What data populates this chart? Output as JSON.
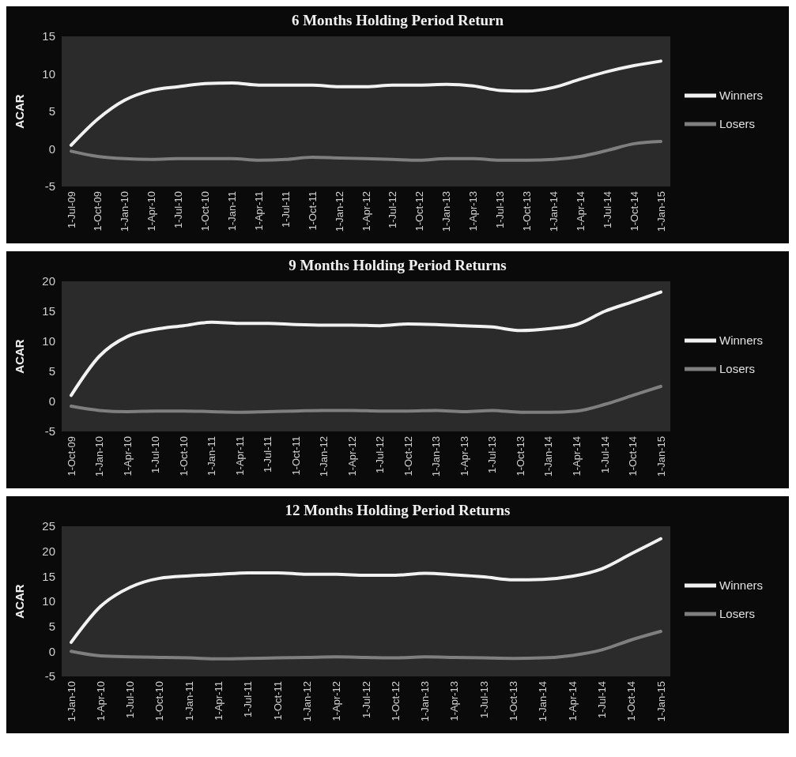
{
  "chart_data": [
    {
      "type": "line",
      "title": "6 Months Holding Period Return",
      "ylabel": "ACAR",
      "categories": [
        "1-Jul-09",
        "1-Oct-09",
        "1-Jan-10",
        "1-Apr-10",
        "1-Jul-10",
        "1-Oct-10",
        "1-Jan-11",
        "1-Apr-11",
        "1-Jul-11",
        "1-Oct-11",
        "1-Jan-12",
        "1-Apr-12",
        "1-Jul-12",
        "1-Oct-12",
        "1-Jan-13",
        "1-Apr-13",
        "1-Jul-13",
        "1-Oct-13",
        "1-Jan-14",
        "1-Apr-14",
        "1-Jul-14",
        "1-Oct-14",
        "1-Jan-15"
      ],
      "series": [
        {
          "name": "Winners",
          "color": "#f2f2f2",
          "values": [
            0.5,
            4,
            6.5,
            7.8,
            8.3,
            8.7,
            8.8,
            8.5,
            8.5,
            8.5,
            8.3,
            8.3,
            8.5,
            8.5,
            8.6,
            8.4,
            7.8,
            7.7,
            8.2,
            9.3,
            10.3,
            11.1,
            11.7
          ]
        },
        {
          "name": "Losers",
          "color": "#7f7f7f",
          "values": [
            -0.3,
            -1,
            -1.3,
            -1.4,
            -1.3,
            -1.3,
            -1.3,
            -1.5,
            -1.4,
            -1.1,
            -1.2,
            -1.3,
            -1.4,
            -1.5,
            -1.3,
            -1.3,
            -1.5,
            -1.5,
            -1.4,
            -1,
            -0.2,
            0.7,
            1
          ]
        }
      ],
      "ylim": [
        -5,
        15
      ],
      "yticks": [
        -5,
        0,
        5,
        10,
        15
      ],
      "legend": "right",
      "grid": false
    },
    {
      "type": "line",
      "title": "9 Months Holding Period Returns",
      "ylabel": "ACAR",
      "categories": [
        "1-Oct-09",
        "1-Jan-10",
        "1-Apr-10",
        "1-Jul-10",
        "1-Oct-10",
        "1-Jan-11",
        "1-Apr-11",
        "1-Jul-11",
        "1-Oct-11",
        "1-Jan-12",
        "1-Apr-12",
        "1-Jul-12",
        "1-Oct-12",
        "1-Jan-13",
        "1-Apr-13",
        "1-Jul-13",
        "1-Oct-13",
        "1-Jan-14",
        "1-Apr-14",
        "1-Jul-14",
        "1-Oct-14",
        "1-Jan-15"
      ],
      "series": [
        {
          "name": "Winners",
          "color": "#f2f2f2",
          "values": [
            1,
            7.5,
            10.8,
            12,
            12.6,
            13.2,
            13,
            13,
            12.8,
            12.7,
            12.7,
            12.6,
            12.9,
            12.8,
            12.6,
            12.4,
            11.8,
            12.1,
            12.8,
            15,
            16.6,
            18.2
          ]
        },
        {
          "name": "Losers",
          "color": "#7f7f7f",
          "values": [
            -0.8,
            -1.5,
            -1.7,
            -1.6,
            -1.6,
            -1.7,
            -1.8,
            -1.7,
            -1.6,
            -1.5,
            -1.5,
            -1.6,
            -1.6,
            -1.5,
            -1.7,
            -1.5,
            -1.8,
            -1.8,
            -1.6,
            -0.5,
            1,
            2.5
          ]
        }
      ],
      "ylim": [
        -5,
        20
      ],
      "yticks": [
        -5,
        0,
        5,
        10,
        15,
        20
      ],
      "legend": "right",
      "grid": false
    },
    {
      "type": "line",
      "title": "12 Months Holding Period Returns",
      "ylabel": "ACAR",
      "categories": [
        "1-Jan-10",
        "1-Apr-10",
        "1-Jul-10",
        "1-Oct-10",
        "1-Jan-11",
        "1-Apr-11",
        "1-Jul-11",
        "1-Oct-11",
        "1-Jan-12",
        "1-Apr-12",
        "1-Jul-12",
        "1-Oct-12",
        "1-Jan-13",
        "1-Apr-13",
        "1-Jul-13",
        "1-Oct-13",
        "1-Jan-14",
        "1-Apr-14",
        "1-Jul-14",
        "1-Oct-14",
        "1-Jan-15"
      ],
      "series": [
        {
          "name": "Winners",
          "color": "#f2f2f2",
          "values": [
            1.8,
            9,
            12.8,
            14.6,
            15.1,
            15.4,
            15.7,
            15.7,
            15.4,
            15.4,
            15.2,
            15.2,
            15.6,
            15.3,
            14.9,
            14.3,
            14.4,
            15,
            16.5,
            19.5,
            22.5
          ]
        },
        {
          "name": "Losers",
          "color": "#7f7f7f",
          "values": [
            0,
            -0.9,
            -1.1,
            -1.2,
            -1.3,
            -1.5,
            -1.4,
            -1.3,
            -1.2,
            -1.1,
            -1.2,
            -1.3,
            -1.1,
            -1.2,
            -1.3,
            -1.4,
            -1.3,
            -0.8,
            0.3,
            2.3,
            4
          ]
        }
      ],
      "ylim": [
        -5,
        25
      ],
      "yticks": [
        -5,
        0,
        5,
        10,
        15,
        20,
        25
      ],
      "legend": "right",
      "grid": false
    }
  ]
}
